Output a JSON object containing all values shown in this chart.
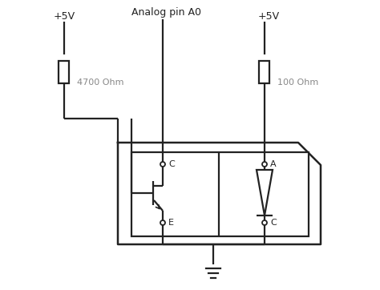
{
  "bg_color": "#ffffff",
  "line_color": "#222222",
  "label_color": "#888888",
  "vcc1_label": "+5V",
  "vcc2_label": "+5V",
  "analog_label": "Analog pin A0",
  "r1_label": "4700 Ohm",
  "r2_label": "100 Ohm",
  "pin_C_label": "C",
  "pin_E_label": "E",
  "pin_A_label": "A",
  "pin_C2_label": "C",
  "figw": 4.74,
  "figh": 3.62,
  "dpi": 100
}
